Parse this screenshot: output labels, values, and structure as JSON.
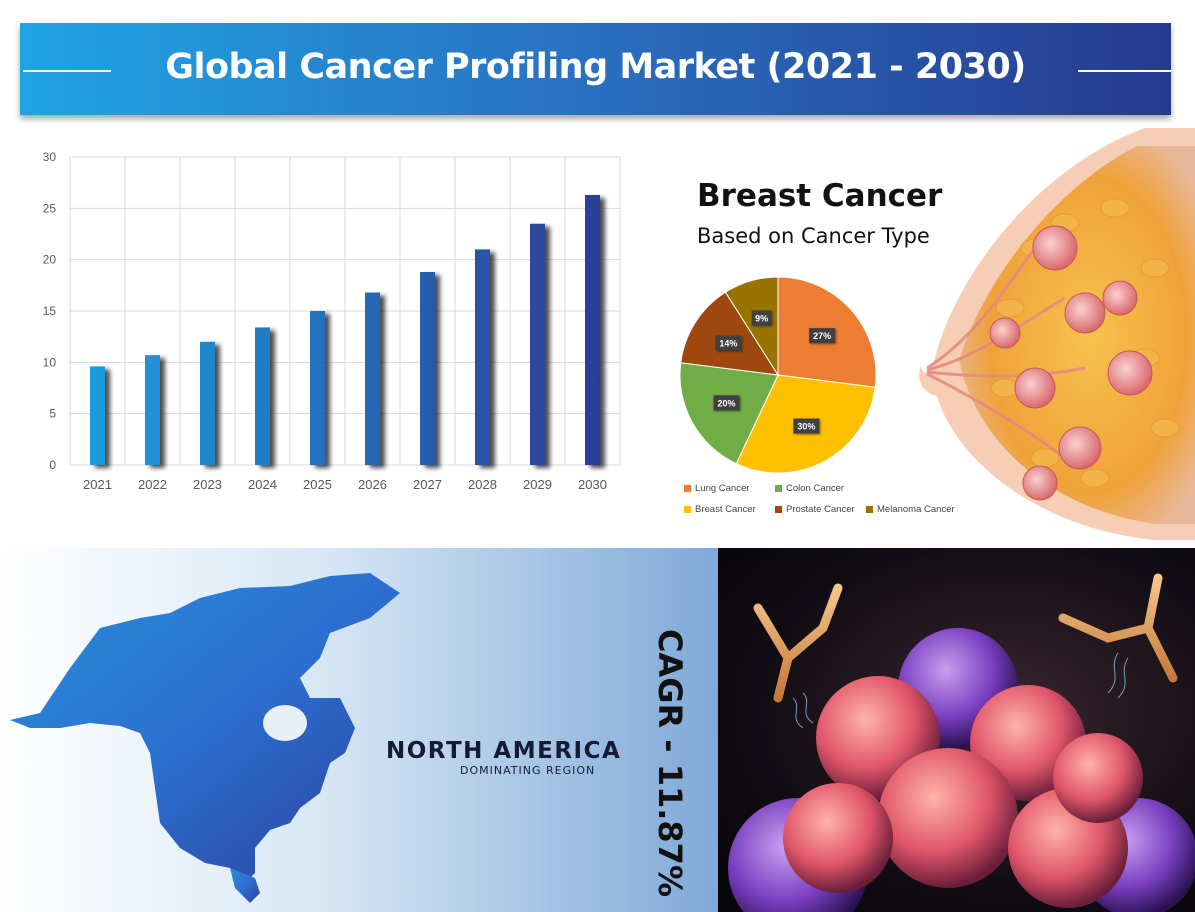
{
  "header": {
    "title": "Global Cancer Profiling Market  (2021 - 2030)"
  },
  "chart_data": [
    {
      "type": "bar",
      "categories": [
        "2021",
        "2022",
        "2023",
        "2024",
        "2025",
        "2026",
        "2027",
        "2028",
        "2029",
        "2030"
      ],
      "values": [
        9.6,
        10.7,
        12.0,
        13.4,
        15.0,
        16.8,
        18.8,
        21.0,
        23.5,
        26.3
      ],
      "ylim": [
        0,
        30
      ],
      "yticks": [
        "0",
        "5",
        "10",
        "15",
        "20",
        "25",
        "30"
      ],
      "grid": true,
      "colors": [
        "#1e9fe0",
        "#2d3a93"
      ]
    },
    {
      "type": "pie",
      "title": "Breast Cancer",
      "subtitle": "Based on Cancer Type",
      "slices": [
        {
          "name": "Lung Cancer",
          "value": 27,
          "label": "27%",
          "color": "#ed7d31"
        },
        {
          "name": "Breast Cancer",
          "value": 30,
          "label": "30%",
          "color": "#ffc000"
        },
        {
          "name": "Colon Cancer",
          "value": 20,
          "label": "20%",
          "color": "#70ad47"
        },
        {
          "name": "Prostate Cancer",
          "value": 14,
          "label": "14%",
          "color": "#9e480e"
        },
        {
          "name": "Melanoma Cancer",
          "value": 9,
          "label": "9%",
          "color": "#997300"
        }
      ],
      "legend_position": "bottom"
    }
  ],
  "illustrations": {
    "breast_anatomy": "breast-tumor-illustration",
    "cancer_cells": "cancer-cell-antibody-illustration",
    "map": "north-america-map"
  },
  "region": {
    "name": "NORTH AMERICA",
    "tagline": "DOMINATING REGION"
  },
  "cagr": {
    "label": "CAGR -  11.87%"
  }
}
